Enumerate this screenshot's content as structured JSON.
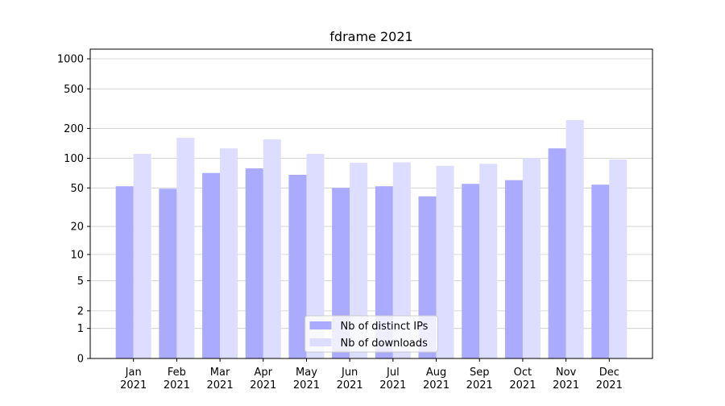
{
  "chart_data": {
    "type": "bar",
    "title": "fdrame 2021",
    "scale": "log1p",
    "categories": [
      "Jan 2021",
      "Feb 2021",
      "Mar 2021",
      "Apr 2021",
      "May 2021",
      "Jun 2021",
      "Jul 2021",
      "Aug 2021",
      "Sep 2021",
      "Oct 2021",
      "Nov 2021",
      "Dec 2021"
    ],
    "series": [
      {
        "name": "Nb of distinct IPs",
        "color": "#aaaaff",
        "values": [
          52,
          49,
          71,
          79,
          68,
          50,
          52,
          41,
          55,
          60,
          126,
          54
        ]
      },
      {
        "name": "Nb of downloads",
        "color": "#ddddff",
        "values": [
          111,
          161,
          126,
          155,
          111,
          90,
          91,
          84,
          88,
          101,
          243,
          97
        ]
      }
    ],
    "ylim": [
      0,
      1250
    ],
    "yticks": [
      0,
      1,
      2,
      5,
      10,
      20,
      50,
      100,
      200,
      500,
      1000
    ],
    "grid": true,
    "legend": "lower center"
  }
}
